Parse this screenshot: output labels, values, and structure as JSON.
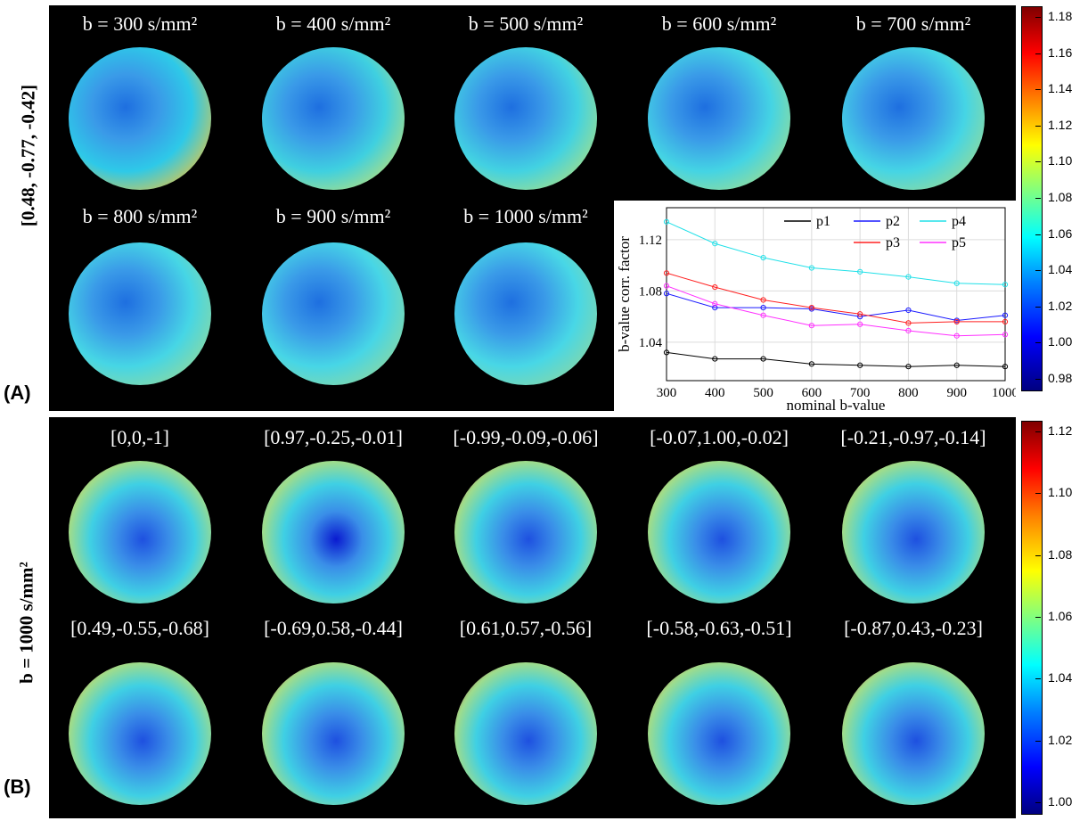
{
  "panel_labels": {
    "a": "(A)",
    "b": "(B)"
  },
  "row_labels": {
    "a": "[0.48, -0.77, -0.42]",
    "b": "b = 1000 s/mm²"
  },
  "panel_a": {
    "maps": [
      {
        "title": "b = 300 s/mm²",
        "bg": "#2ec9e8",
        "glow": "#e8c640"
      },
      {
        "title": "b = 400 s/mm²",
        "bg": "#3fd0e0",
        "glow": "#b7e07a"
      },
      {
        "title": "b = 500 s/mm²",
        "bg": "#42d2e2",
        "glow": "#a8e084"
      },
      {
        "title": "b = 600 s/mm²",
        "bg": "#44d4e4",
        "glow": "#9edd8e"
      },
      {
        "title": "b = 700 s/mm²",
        "bg": "#45d5e5",
        "glow": "#98db94"
      },
      {
        "title": "b = 800 s/mm²",
        "bg": "#46d6e5",
        "glow": "#92d99a"
      },
      {
        "title": "b = 900 s/mm²",
        "bg": "#47d6e6",
        "glow": "#8ed89e"
      },
      {
        "title": "b = 1000 s/mm²",
        "bg": "#48d7e6",
        "glow": "#8ad7a2"
      }
    ],
    "points": [
      "p1",
      "p2",
      "p3",
      "p4",
      "p5"
    ],
    "colorbar_ticks": [
      "1.18",
      "1.16",
      "1.14",
      "1.12",
      "1.10",
      "1.08",
      "1.06",
      "1.04",
      "1.02",
      "1.00",
      "0.98"
    ]
  },
  "panel_b": {
    "maps": [
      {
        "title": "[0,0,-1]",
        "glow": "#f0a030"
      },
      {
        "title": "[0.97,-0.25,-0.01]",
        "glow": "#6ab8e8"
      },
      {
        "title": "[-0.99,-0.09,-0.06]",
        "glow": "#e85a20"
      },
      {
        "title": "[-0.07,1.00,-0.02]",
        "glow": "#f0b030"
      },
      {
        "title": "[-0.21,-0.97,-0.14]",
        "glow": "#f0a030"
      },
      {
        "title": "[0.49,-0.55,-0.68]",
        "glow": "#f07a20"
      },
      {
        "title": "[-0.69,0.58,-0.44]",
        "glow": "#f06020"
      },
      {
        "title": "[0.61,0.57,-0.56]",
        "glow": "#c01010"
      },
      {
        "title": "[-0.58,-0.63,-0.51]",
        "glow": "#f06020"
      },
      {
        "title": "[-0.87,0.43,-0.23]",
        "glow": "#f05020"
      }
    ],
    "colorbar_ticks": [
      "1.12",
      "1.10",
      "1.08",
      "1.06",
      "1.04",
      "1.02",
      "1.00"
    ]
  },
  "chart_data": {
    "type": "line",
    "title": "",
    "xlabel": "nominal b-value",
    "ylabel": "b-value corr. factor",
    "x": [
      300,
      400,
      500,
      600,
      700,
      800,
      900,
      1000
    ],
    "xlim": [
      300,
      1000
    ],
    "ylim": [
      1.01,
      1.145
    ],
    "yticks": [
      1.04,
      1.08,
      1.12
    ],
    "xticks": [
      300,
      400,
      500,
      600,
      700,
      800,
      900,
      1000
    ],
    "grid": true,
    "legend": "top-right",
    "series": [
      {
        "name": "p1",
        "color": "#000000",
        "values": [
          1.032,
          1.027,
          1.027,
          1.023,
          1.022,
          1.021,
          1.022,
          1.021
        ]
      },
      {
        "name": "p2",
        "color": "#1a1aff",
        "values": [
          1.078,
          1.067,
          1.067,
          1.066,
          1.06,
          1.065,
          1.057,
          1.061
        ]
      },
      {
        "name": "p3",
        "color": "#ff2020",
        "values": [
          1.094,
          1.083,
          1.073,
          1.067,
          1.062,
          1.055,
          1.056,
          1.056
        ]
      },
      {
        "name": "p4",
        "color": "#20e0e8",
        "values": [
          1.134,
          1.117,
          1.106,
          1.098,
          1.095,
          1.091,
          1.086,
          1.085
        ]
      },
      {
        "name": "p5",
        "color": "#ff30ff",
        "values": [
          1.084,
          1.07,
          1.061,
          1.053,
          1.054,
          1.049,
          1.045,
          1.046
        ]
      }
    ]
  }
}
